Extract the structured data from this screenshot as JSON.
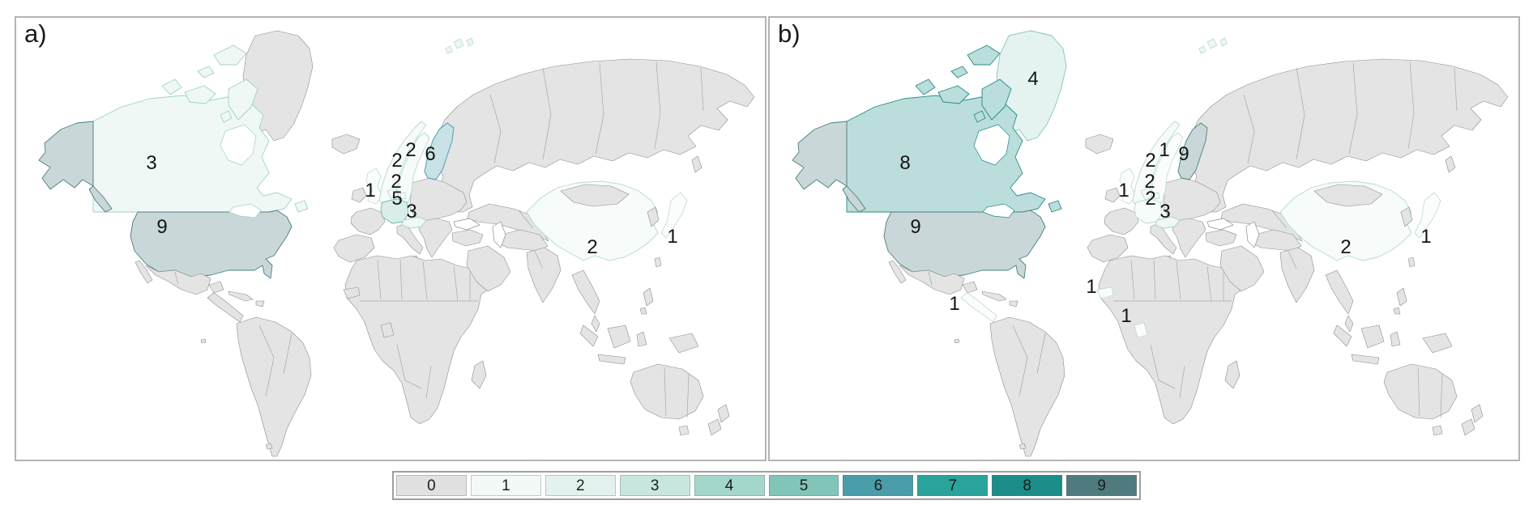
{
  "panels": [
    {
      "id": "a",
      "label": "a)",
      "country_values": {
        "canada": 3,
        "united_states": 9,
        "norway": 2,
        "sweden": 2,
        "finland": 6,
        "united_kingdom": 1,
        "denmark": 2,
        "germany": 5,
        "austria": 3,
        "china": 2,
        "japan": 1
      }
    },
    {
      "id": "b",
      "label": "b)",
      "country_values": {
        "canada": 8,
        "united_states": 9,
        "greenland": 4,
        "norway": 2,
        "sweden": 1,
        "finland": 9,
        "united_kingdom": 1,
        "denmark": 2,
        "germany": 2,
        "austria": 3,
        "china": 2,
        "japan": 1,
        "costa_rica": 1,
        "senegal": 1,
        "ghana": 1
      }
    }
  ],
  "legend": {
    "values": [
      "0",
      "1",
      "2",
      "3",
      "4",
      "5",
      "6",
      "7",
      "8",
      "9"
    ],
    "colors": [
      "#e1e1e1",
      "#f2f9f6",
      "#e3f2ee",
      "#c8e6df",
      "#a4d7cc",
      "#81c5b9",
      "#4a9da9",
      "#2aa39a",
      "#1d8d88",
      "#4f7b7e"
    ]
  },
  "map_colors": {
    "no_data_fill": "#e4e4e4",
    "no_data_border": "#8e8e8e",
    "ocean": "#ffffff",
    "label_color": "#141414",
    "panel_border": "#b3b3b3"
  }
}
